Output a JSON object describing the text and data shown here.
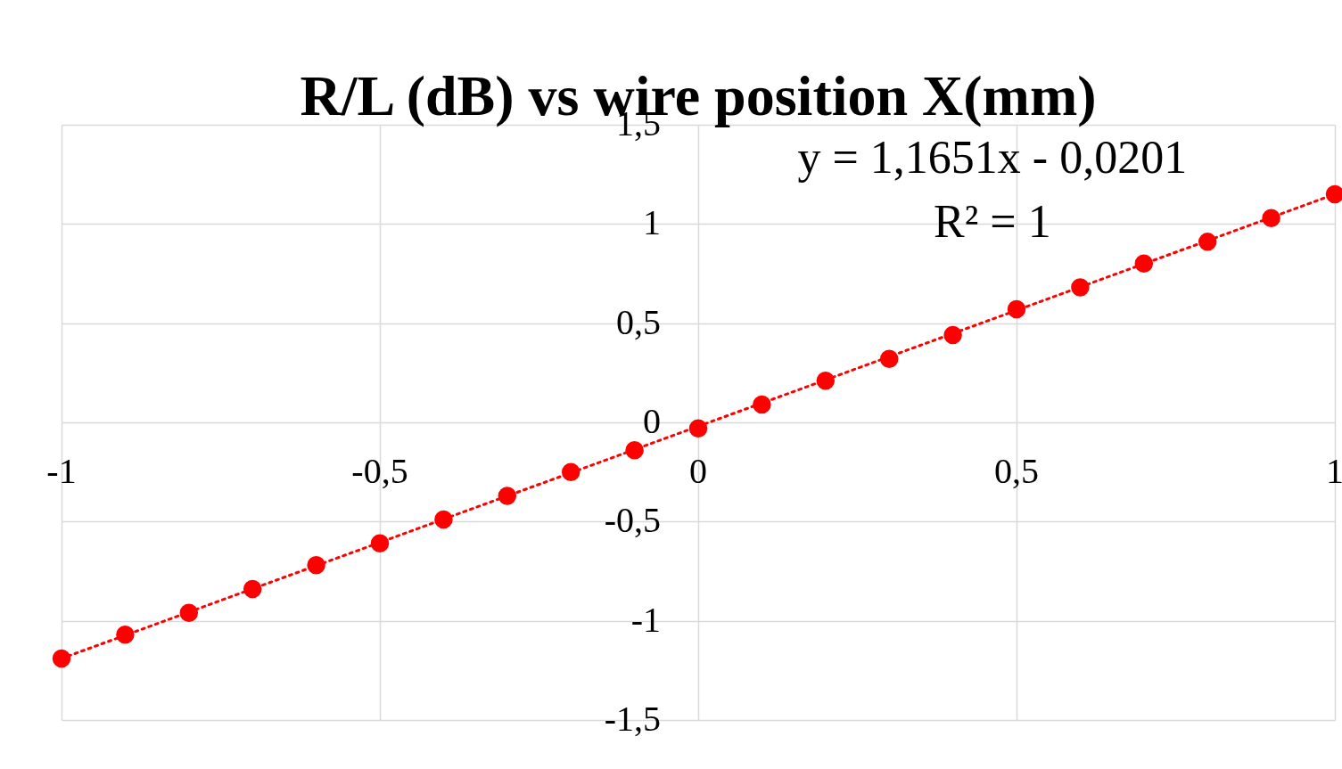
{
  "chart_data": {
    "type": "scatter",
    "title": "R/L (dB) vs wire position X(mm)",
    "x": [
      -1,
      -0.9,
      -0.8,
      -0.7,
      -0.6,
      -0.5,
      -0.4,
      -0.3,
      -0.2,
      -0.1,
      0,
      0.1,
      0.2,
      0.3,
      0.4,
      0.5,
      0.6,
      0.7,
      0.8,
      0.9,
      1
    ],
    "series": [
      {
        "color": "#ff0000",
        "values": [
          -1.19,
          -1.07,
          -0.96,
          -0.84,
          -0.72,
          -0.61,
          -0.49,
          -0.37,
          -0.25,
          -0.14,
          -0.03,
          0.09,
          0.21,
          0.32,
          0.44,
          0.57,
          0.68,
          0.8,
          0.91,
          1.03,
          1.15
        ]
      },
      {
        "type": "line",
        "color": "#ff0000",
        "line_style": "dotted",
        "marker": "none",
        "x": [
          -1,
          1
        ],
        "values": [
          -1.19,
          1.15
        ]
      }
    ],
    "annotations": [
      "y = 1,1651x - 0,0201",
      "R² = 1"
    ],
    "xlim": [
      -1,
      1
    ],
    "ylim": [
      -1.5,
      1.5
    ],
    "xticks": [
      -1,
      {
        "value": -0.5,
        "label": "-0,5"
      },
      0,
      {
        "value": 0.5,
        "label": "0,5"
      },
      1
    ],
    "yticks": [
      {
        "value": -1.5,
        "label": "-1,5"
      },
      -1,
      {
        "value": -0.5,
        "label": "-0,5"
      },
      0,
      {
        "value": 0.5,
        "label": "0,5"
      },
      1,
      {
        "value": 1.5,
        "label": "1,5"
      }
    ],
    "grid": true,
    "marker": "circle"
  }
}
